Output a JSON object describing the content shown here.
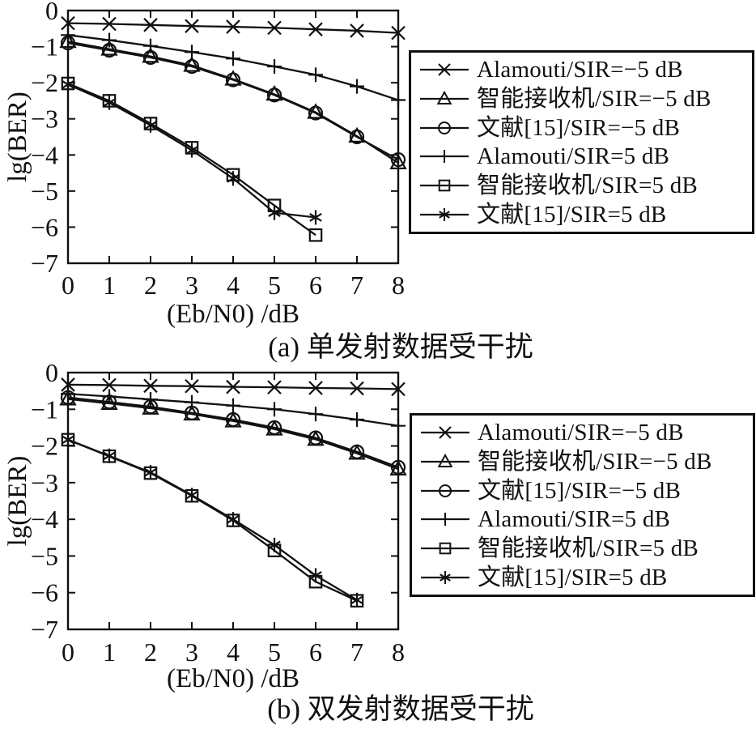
{
  "figure": {
    "background": "#ffffff",
    "ink_color": "#111111"
  },
  "chart_data": [
    {
      "type": "line",
      "caption": "(a) 单发射数据受干扰",
      "xlabel": "(Eb/N0) /dB",
      "ylabel": "lg(BER)",
      "xlim": [
        0,
        8
      ],
      "ylim": [
        -7,
        0
      ],
      "xticks": [
        0,
        1,
        2,
        3,
        4,
        5,
        6,
        7,
        8
      ],
      "yticks": [
        0,
        -1,
        -2,
        -3,
        -4,
        -5,
        -6,
        -7
      ],
      "grid": false,
      "legend_position": "outside-right",
      "series": [
        {
          "name": "Alamouti/SIR=−5 dB",
          "marker": "x",
          "x": [
            0,
            1,
            2,
            3,
            4,
            5,
            6,
            7,
            8
          ],
          "y": [
            -0.35,
            -0.37,
            -0.4,
            -0.43,
            -0.45,
            -0.48,
            -0.52,
            -0.56,
            -0.62
          ]
        },
        {
          "name": "智能接收机/SIR=−5 dB",
          "marker": "triangle",
          "x": [
            0,
            1,
            2,
            3,
            4,
            5,
            6,
            7,
            8
          ],
          "y": [
            -0.86,
            -1.07,
            -1.27,
            -1.52,
            -1.9,
            -2.32,
            -2.82,
            -3.48,
            -4.22
          ]
        },
        {
          "name": "文献[15]/SIR=−5 dB",
          "marker": "circle",
          "x": [
            0,
            1,
            2,
            3,
            4,
            5,
            6,
            7,
            8
          ],
          "y": [
            -0.9,
            -1.1,
            -1.3,
            -1.55,
            -1.92,
            -2.34,
            -2.84,
            -3.5,
            -4.13
          ]
        },
        {
          "name": "Alamouti/SIR=5 dB",
          "marker": "plus",
          "x": [
            0,
            1,
            2,
            3,
            4,
            5,
            6,
            7,
            8
          ],
          "y": [
            -0.68,
            -0.82,
            -0.98,
            -1.15,
            -1.33,
            -1.55,
            -1.78,
            -2.1,
            -2.48
          ]
        },
        {
          "name": "智能接收机/SIR=5 dB",
          "marker": "square",
          "x": [
            0,
            1,
            2,
            3,
            4,
            5,
            6
          ],
          "y": [
            -2.02,
            -2.5,
            -3.13,
            -3.8,
            -4.55,
            -5.4,
            -6.22
          ]
        },
        {
          "name": "文献[15]/SIR=5 dB",
          "marker": "asterisk",
          "x": [
            0,
            1,
            2,
            3,
            4,
            5,
            6
          ],
          "y": [
            -2.05,
            -2.55,
            -3.18,
            -3.87,
            -4.65,
            -5.6,
            -5.73
          ]
        }
      ]
    },
    {
      "type": "line",
      "caption": "(b) 双发射数据受干扰",
      "xlabel": "(Eb/N0) /dB",
      "ylabel": "lg(BER)",
      "xlim": [
        0,
        8
      ],
      "ylim": [
        -7,
        0
      ],
      "xticks": [
        0,
        1,
        2,
        3,
        4,
        5,
        6,
        7,
        8
      ],
      "yticks": [
        0,
        -1,
        -2,
        -3,
        -4,
        -5,
        -6,
        -7
      ],
      "grid": false,
      "legend_position": "outside-right",
      "series": [
        {
          "name": "Alamouti/SIR=−5 dB",
          "marker": "x",
          "x": [
            0,
            1,
            2,
            3,
            4,
            5,
            6,
            7,
            8
          ],
          "y": [
            -0.33,
            -0.34,
            -0.36,
            -0.37,
            -0.39,
            -0.4,
            -0.42,
            -0.43,
            -0.45
          ]
        },
        {
          "name": "智能接收机/SIR=−5 dB",
          "marker": "triangle",
          "x": [
            0,
            1,
            2,
            3,
            4,
            5,
            6,
            7,
            8
          ],
          "y": [
            -0.72,
            -0.84,
            -0.97,
            -1.13,
            -1.32,
            -1.54,
            -1.82,
            -2.2,
            -2.63
          ]
        },
        {
          "name": "文献[15]/SIR=−5 dB",
          "marker": "circle",
          "x": [
            0,
            1,
            2,
            3,
            4,
            5,
            6,
            7,
            8
          ],
          "y": [
            -0.68,
            -0.8,
            -0.93,
            -1.1,
            -1.28,
            -1.5,
            -1.78,
            -2.16,
            -2.58
          ]
        },
        {
          "name": "Alamouti/SIR=5 dB",
          "marker": "plus",
          "x": [
            0,
            1,
            2,
            3,
            4,
            5,
            6,
            7,
            8
          ],
          "y": [
            -0.58,
            -0.65,
            -0.73,
            -0.81,
            -0.9,
            -1.0,
            -1.13,
            -1.28,
            -1.45
          ]
        },
        {
          "name": "智能接收机/SIR=5 dB",
          "marker": "square",
          "x": [
            0,
            1,
            2,
            3,
            4,
            5,
            6,
            7
          ],
          "y": [
            -1.83,
            -2.28,
            -2.74,
            -3.36,
            -4.03,
            -4.85,
            -5.7,
            -6.22
          ]
        },
        {
          "name": "文献[15]/SIR=5 dB",
          "marker": "asterisk",
          "x": [
            0,
            1,
            2,
            3,
            4,
            5,
            6,
            7
          ],
          "y": [
            -1.83,
            -2.27,
            -2.72,
            -3.34,
            -4.0,
            -4.7,
            -5.53,
            -6.2
          ]
        }
      ]
    }
  ]
}
